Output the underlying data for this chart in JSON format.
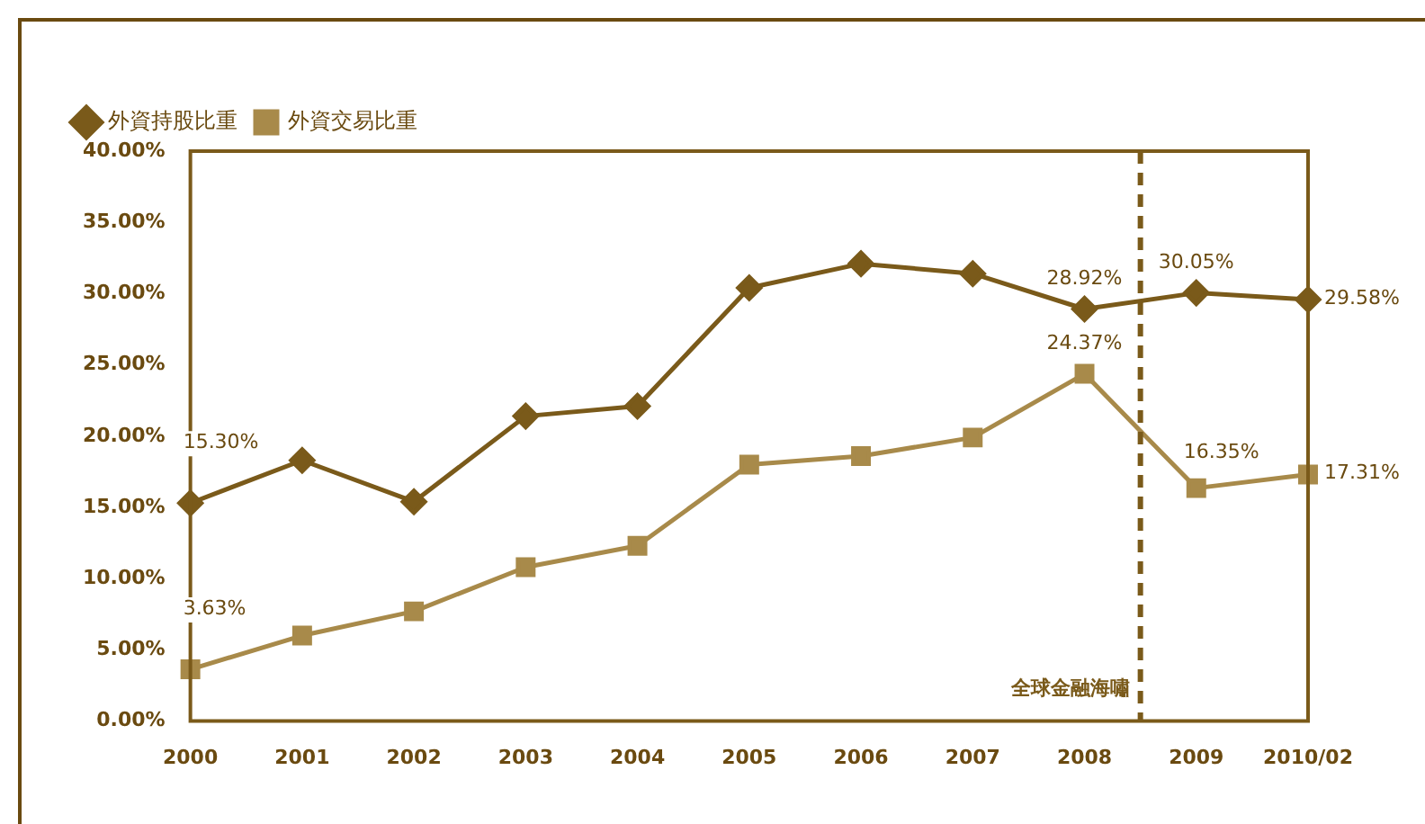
{
  "chart_data": {
    "type": "line",
    "categories": [
      "2000",
      "2001",
      "2002",
      "2003",
      "2004",
      "2005",
      "2006",
      "2007",
      "2008",
      "2009",
      "2010/02"
    ],
    "series": [
      {
        "name": "外資持股比重",
        "color": "#7a5a1a",
        "marker": "diamond",
        "values": [
          15.3,
          18.3,
          15.4,
          21.4,
          22.1,
          30.4,
          32.1,
          31.4,
          28.92,
          30.05,
          29.58
        ],
        "value_labels": [
          "15.30%",
          null,
          null,
          null,
          null,
          null,
          null,
          null,
          "28.92%",
          "30.05%",
          "29.58%"
        ]
      },
      {
        "name": "外資交易比重",
        "color": "#a88a4a",
        "marker": "square",
        "values": [
          3.63,
          6.0,
          7.7,
          10.8,
          12.3,
          18.0,
          18.6,
          19.9,
          24.37,
          16.35,
          17.31
        ],
        "value_labels": [
          "3.63%",
          null,
          null,
          null,
          null,
          null,
          null,
          null,
          "24.37%",
          "16.35%",
          "17.31%"
        ]
      }
    ],
    "ylim": [
      0,
      40
    ],
    "yticks": [
      {
        "value": 0,
        "label": "0.00%"
      },
      {
        "value": 5,
        "label": "5.00%"
      },
      {
        "value": 10,
        "label": "10.00%"
      },
      {
        "value": 15,
        "label": "15.00%"
      },
      {
        "value": 20,
        "label": "20.00%"
      },
      {
        "value": 25,
        "label": "25.00%"
      },
      {
        "value": 30,
        "label": "30.00%"
      },
      {
        "value": 35,
        "label": "35.00%"
      },
      {
        "value": 40,
        "label": "40.00%"
      }
    ],
    "grid": false,
    "legend": "top left",
    "ref_lines": [
      {
        "axis": "x",
        "value": "2008",
        "label": "全球金融海嘯",
        "color": "#7a5a1a",
        "line_style": "dashed"
      }
    ]
  }
}
